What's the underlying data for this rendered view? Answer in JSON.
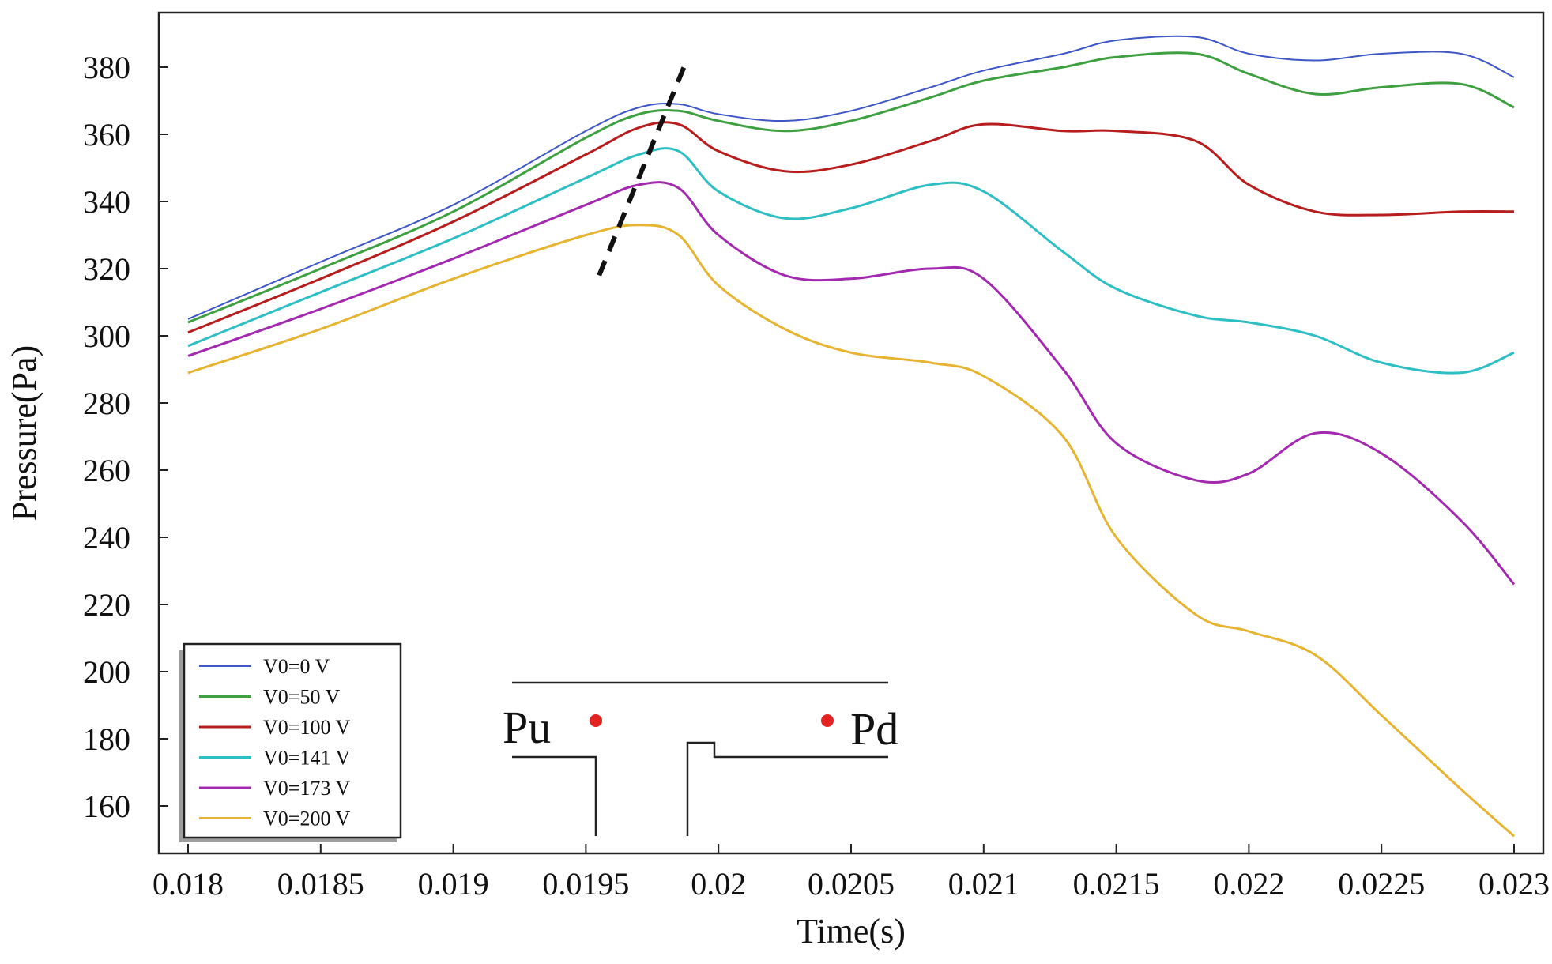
{
  "chart_data": {
    "type": "line",
    "title": "",
    "xlabel": "Time(s)",
    "ylabel": "Pressure(Pa)",
    "xlim": [
      0.018,
      0.023
    ],
    "ylim": [
      150,
      395
    ],
    "xticks": [
      0.018,
      0.0185,
      0.019,
      0.0195,
      0.02,
      0.0205,
      0.021,
      0.0215,
      0.022,
      0.0225,
      0.023
    ],
    "xtick_labels": [
      "0.018",
      "0.0185",
      "0.019",
      "0.0195",
      "0.02",
      "0.0205",
      "0.021",
      "0.0215",
      "0.022",
      "0.0225",
      "0.023"
    ],
    "yticks": [
      160,
      180,
      200,
      220,
      240,
      260,
      280,
      300,
      320,
      340,
      360,
      380
    ],
    "ytick_labels": [
      "160",
      "180",
      "200",
      "220",
      "240",
      "260",
      "280",
      "300",
      "320",
      "340",
      "360",
      "380"
    ],
    "grid": false,
    "legend_position": "bottom-left",
    "x": [
      0.018,
      0.0185,
      0.019,
      0.0195,
      0.0197,
      0.01985,
      0.02,
      0.02025,
      0.0205,
      0.0208,
      0.021,
      0.0213,
      0.0215,
      0.0218,
      0.022,
      0.02225,
      0.0225,
      0.0228,
      0.023
    ],
    "series": [
      {
        "name": "V0=0 V",
        "color": "#3f57c6",
        "values": [
          305,
          322,
          339,
          361,
          368,
          369,
          366,
          364,
          367,
          374,
          379,
          384,
          388,
          389,
          384,
          382,
          384,
          384,
          377
        ]
      },
      {
        "name": "V0=50 V",
        "color": "#3ea041",
        "values": [
          304,
          320,
          337,
          359,
          366,
          367,
          364,
          361,
          364,
          371,
          376,
          380,
          383,
          384,
          378,
          372,
          374,
          375,
          368
        ]
      },
      {
        "name": "V0=100 V",
        "color": "#b81d1d",
        "values": [
          301,
          317,
          334,
          354,
          362,
          363,
          355,
          349,
          351,
          358,
          363,
          361,
          361,
          358,
          345,
          337,
          336,
          337,
          337
        ]
      },
      {
        "name": "V0=141 V",
        "color": "#2ebfc4",
        "values": [
          297,
          313,
          329,
          347,
          354,
          355,
          343,
          335,
          338,
          345,
          343,
          325,
          314,
          306,
          304,
          300,
          292,
          289,
          295
        ]
      },
      {
        "name": "V0=173 V",
        "color": "#a32ab0",
        "values": [
          294,
          308,
          323,
          339,
          345,
          344,
          330,
          318,
          317,
          320,
          317,
          290,
          268,
          257,
          259,
          271,
          265,
          245,
          226
        ]
      },
      {
        "name": "V0=200 V",
        "color": "#e6b431",
        "values": [
          289,
          302,
          317,
          330,
          333,
          330,
          315,
          302,
          295,
          292,
          288,
          270,
          240,
          217,
          212,
          205,
          187,
          165,
          151
        ]
      }
    ],
    "annotations": {
      "dashed_line": {
        "from": [
          0.01955,
          318
        ],
        "to": [
          0.01988,
          382
        ]
      },
      "inset_labels": [
        "Pu",
        "Pd"
      ]
    }
  }
}
